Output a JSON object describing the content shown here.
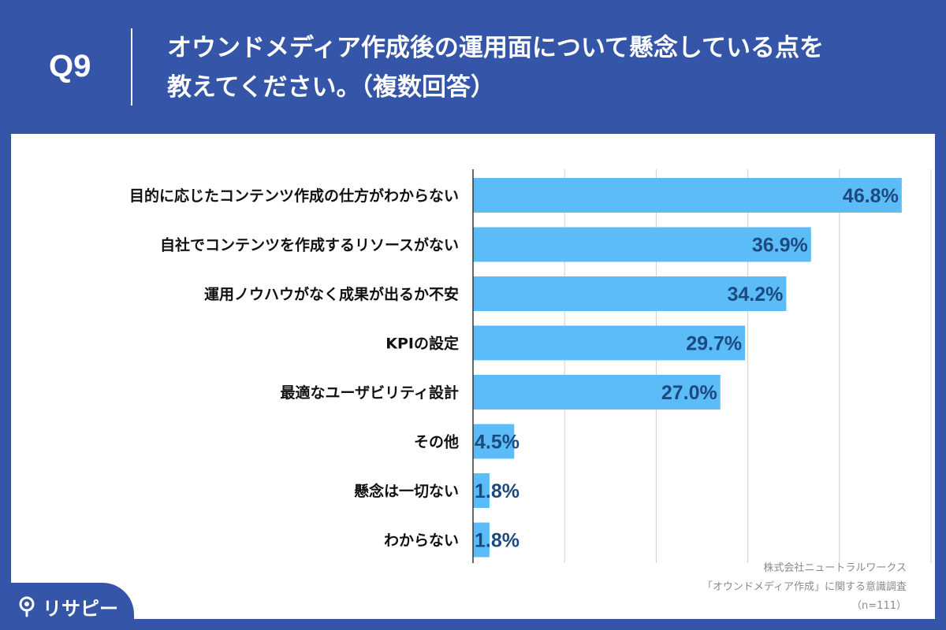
{
  "header": {
    "question_no": "Q9",
    "title_line1": "オウンドメディア作成後の運用面について懸念している点を",
    "title_line2": "教えてください。（複数回答）"
  },
  "chart_data": {
    "type": "bar",
    "orientation": "horizontal",
    "categories": [
      "目的に応じたコンテンツ作成の仕方がわからない",
      "自社でコンテンツを作成するリソースがない",
      "運用ノウハウがなく成果が出るか不安",
      "KPIの設定",
      "最適なユーザビリティ設計",
      "その他",
      "懸念は一切ない",
      "わからない"
    ],
    "values": [
      46.8,
      36.9,
      34.2,
      29.7,
      27.0,
      4.5,
      1.8,
      1.8
    ],
    "value_labels": [
      "46.8%",
      "36.9%",
      "34.2%",
      "29.7%",
      "27.0%",
      "4.5%",
      "1.8%",
      "1.8%"
    ],
    "xlim": [
      0,
      50
    ],
    "grid": true,
    "bar_color": "#5bbcf7",
    "label_color": "#1c4a80"
  },
  "source": {
    "line1": "株式会社ニュートラルワークス",
    "line2": "「オウンドメディア作成」に関する意識調査",
    "line3": "（n=111）"
  },
  "logo": {
    "text": "リサピー",
    "icon": "pin-icon"
  },
  "colors": {
    "background": "#3556a8",
    "panel": "#ffffff",
    "gridline": "#d0d0d0",
    "axis": "#333333"
  }
}
